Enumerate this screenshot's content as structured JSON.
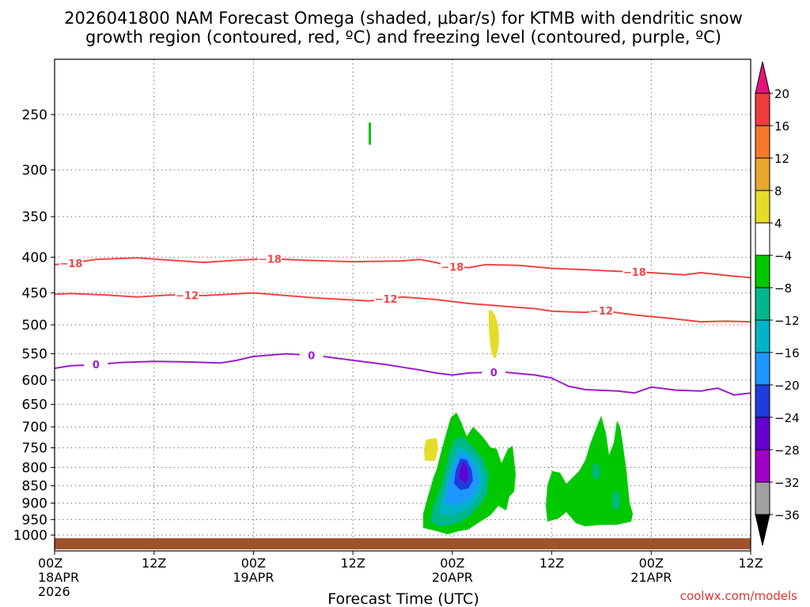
{
  "chart_data": {
    "type": "time-height contour",
    "title_line1": "2026041800 NAM Forecast Omega (shaded, μbar/s) for KTMB with dendritic snow",
    "title_line2": "growth region (contoured, red, ºC) and freezing level (contoured, purple, ºC)",
    "xlabel": "Forecast Time (UTC)",
    "credit": "coolwx.com/models",
    "x_range_hours": [
      0,
      84
    ],
    "y_range_hpa": [
      1025,
      200
    ],
    "y_ticks": [
      {
        "p": 250,
        "label": "250"
      },
      {
        "p": 300,
        "label": "300"
      },
      {
        "p": 350,
        "label": "350"
      },
      {
        "p": 400,
        "label": "400"
      },
      {
        "p": 450,
        "label": "450"
      },
      {
        "p": 500,
        "label": "500"
      },
      {
        "p": 550,
        "label": "550"
      },
      {
        "p": 600,
        "label": "600"
      },
      {
        "p": 650,
        "label": "650"
      },
      {
        "p": 700,
        "label": "700"
      },
      {
        "p": 750,
        "label": "750"
      },
      {
        "p": 800,
        "label": "800"
      },
      {
        "p": 850,
        "label": "850"
      },
      {
        "p": 900,
        "label": "900"
      },
      {
        "p": 950,
        "label": "950"
      },
      {
        "p": 1000,
        "label": "1000"
      }
    ],
    "x_ticks": [
      {
        "h": 0,
        "lines": [
          "00Z",
          "18APR",
          "2026"
        ]
      },
      {
        "h": 12,
        "lines": [
          "12Z"
        ]
      },
      {
        "h": 24,
        "lines": [
          "00Z",
          "19APR"
        ]
      },
      {
        "h": 36,
        "lines": [
          "12Z"
        ]
      },
      {
        "h": 48,
        "lines": [
          "00Z",
          "20APR"
        ]
      },
      {
        "h": 60,
        "lines": [
          "12Z"
        ]
      },
      {
        "h": 72,
        "lines": [
          "00Z",
          "21APR"
        ]
      },
      {
        "h": 84,
        "lines": [
          "12Z"
        ]
      }
    ],
    "colorbar": {
      "labels": [
        "20",
        "16",
        "12",
        "8",
        "4",
        "−4",
        "−8",
        "−12",
        "−16",
        "−20",
        "−24",
        "−28",
        "−32",
        "−36"
      ],
      "colors": [
        "#e8127c",
        "#f03c3c",
        "#f47a28",
        "#e8a82c",
        "#e6dc28",
        "#ffffff",
        "#00c800",
        "#00b88a",
        "#00b4c8",
        "#1e96ff",
        "#1e3cdc",
        "#6400d2",
        "#a000c8",
        "#a0a0a0",
        "#000000"
      ]
    },
    "series": [
      {
        "name": "-18C isotherm",
        "label": "−18",
        "color": "#f04646",
        "label_hours": [
          2,
          26,
          48,
          70
        ],
        "points": [
          [
            0,
            410
          ],
          [
            2,
            408
          ],
          [
            5,
            403
          ],
          [
            10,
            401
          ],
          [
            14,
            404
          ],
          [
            18,
            407
          ],
          [
            22,
            404
          ],
          [
            26,
            402
          ],
          [
            30,
            404
          ],
          [
            36,
            406
          ],
          [
            42,
            405
          ],
          [
            44,
            403
          ],
          [
            46,
            407
          ],
          [
            48,
            413
          ],
          [
            50,
            414
          ],
          [
            52,
            410
          ],
          [
            56,
            411
          ],
          [
            60,
            415
          ],
          [
            64,
            417
          ],
          [
            68,
            419
          ],
          [
            72,
            421
          ],
          [
            76,
            424
          ],
          [
            78,
            421
          ],
          [
            82,
            426
          ],
          [
            84,
            428
          ]
        ]
      },
      {
        "name": "-12C isotherm",
        "label": "−12",
        "color": "#f04646",
        "label_hours": [
          16,
          40,
          66
        ],
        "points": [
          [
            0,
            452
          ],
          [
            2,
            451
          ],
          [
            6,
            453
          ],
          [
            10,
            456
          ],
          [
            14,
            453
          ],
          [
            18,
            454
          ],
          [
            24,
            450
          ],
          [
            28,
            454
          ],
          [
            32,
            458
          ],
          [
            38,
            462
          ],
          [
            42,
            456
          ],
          [
            46,
            460
          ],
          [
            50,
            466
          ],
          [
            54,
            470
          ],
          [
            58,
            474
          ],
          [
            60,
            478
          ],
          [
            64,
            480
          ],
          [
            66,
            477
          ],
          [
            70,
            484
          ],
          [
            74,
            489
          ],
          [
            78,
            495
          ],
          [
            81,
            494
          ],
          [
            84,
            495
          ]
        ]
      },
      {
        "name": "0C freezing level",
        "label": "0",
        "color": "#9c1ec8",
        "label_hours": [
          5,
          31,
          53
        ],
        "points": [
          [
            0,
            577
          ],
          [
            2,
            572
          ],
          [
            4,
            571
          ],
          [
            8,
            566
          ],
          [
            12,
            564
          ],
          [
            16,
            565
          ],
          [
            20,
            567
          ],
          [
            22,
            562
          ],
          [
            24,
            555
          ],
          [
            28,
            550
          ],
          [
            32,
            554
          ],
          [
            36,
            562
          ],
          [
            40,
            570
          ],
          [
            44,
            580
          ],
          [
            46,
            586
          ],
          [
            48,
            590
          ],
          [
            50,
            586
          ],
          [
            54,
            584
          ],
          [
            58,
            590
          ],
          [
            60,
            596
          ],
          [
            62,
            612
          ],
          [
            64,
            619
          ],
          [
            68,
            622
          ],
          [
            70,
            626
          ],
          [
            72,
            614
          ],
          [
            75,
            620
          ],
          [
            78,
            622
          ],
          [
            80,
            616
          ],
          [
            82,
            630
          ],
          [
            84,
            626
          ]
        ]
      }
    ],
    "omega_regions": [
      {
        "value": "-4 to -8",
        "color": "#00c800",
        "location": "upward motion column near 00Z 20APR, 700-950 hPa"
      },
      {
        "value": "-8 to -12",
        "color": "#00b88a",
        "location": "core of column near 00Z 20APR"
      },
      {
        "value": "-12 to -16",
        "color": "#00b4c8",
        "location": "core of column near 00Z 20APR"
      },
      {
        "value": "-16 to -20",
        "color": "#1e96ff",
        "location": "core of column near 00Z 20APR"
      },
      {
        "value": "-20 to -24",
        "color": "#1e3cdc",
        "location": "core near 800-850 hPa"
      },
      {
        "value": "-24 to -28",
        "color": "#6400d2",
        "location": "max near 800 hPa"
      },
      {
        "value": "-4 to -8",
        "color": "#00c800",
        "location": "second column 12Z-18Z 20APR, 700-950 hPa"
      },
      {
        "value": "4 to 8",
        "color": "#e6dc28",
        "location": "small positive cells near 500 hPa and 760 hPa"
      },
      {
        "value": "-4 to -8",
        "color": "#00c800",
        "location": "small cell near 260 hPa"
      }
    ],
    "ground": {
      "color": "#a0522d",
      "description": "surface (below ~1010 hPa)"
    }
  }
}
